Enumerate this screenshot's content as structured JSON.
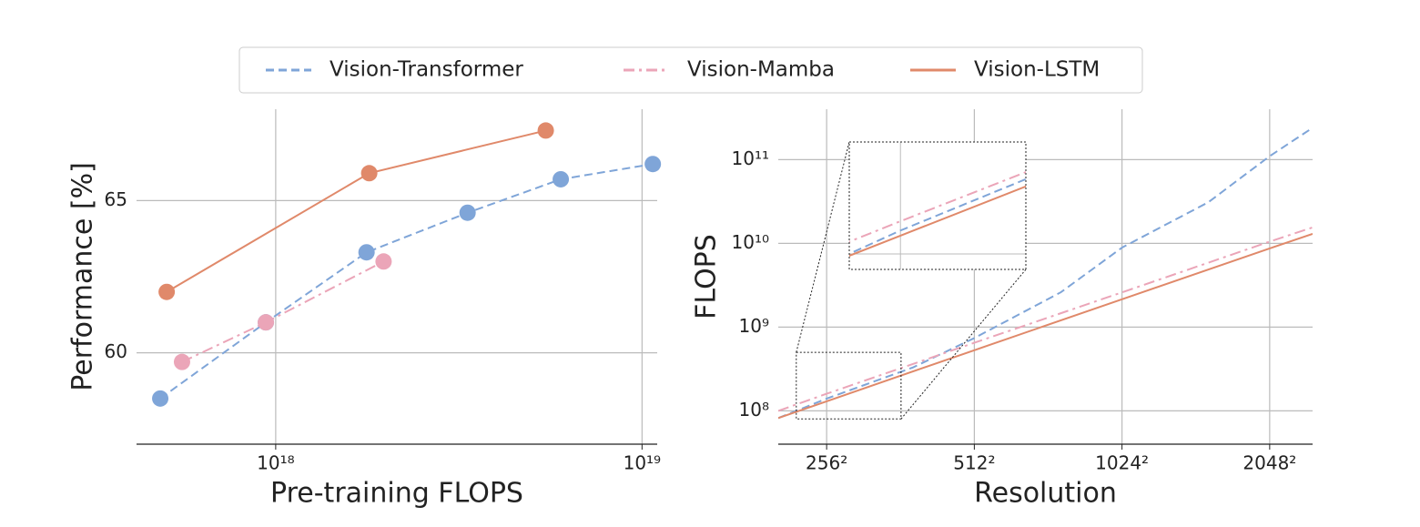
{
  "chart_data": [
    {
      "type": "line",
      "xlabel": "Pre-training FLOPS",
      "ylabel": "Performance [%]",
      "xscale": "log",
      "yscale": "linear",
      "grid": true,
      "markers": true,
      "xlim": [
        4.17e+17,
        1.1e+19
      ],
      "ylim": [
        57,
        68
      ],
      "xticks": [
        {
          "value": 1e+18,
          "label": "10¹⁸"
        },
        {
          "value": 1e+19,
          "label": "10¹⁹"
        }
      ],
      "yticks": [
        60,
        65
      ],
      "series": [
        {
          "name": "Vision-Transformer",
          "color": "#7fa5d8",
          "dash": "--",
          "x": [
            4.84e+17,
            9.4e+17,
            1.77e+18,
            3.34e+18,
            6e+18,
            1.07e+19
          ],
          "values": [
            58.5,
            61.0,
            63.3,
            64.6,
            65.7,
            66.2
          ]
        },
        {
          "name": "Vision-Mamba",
          "color": "#eba5b8",
          "dash": "-.",
          "x": [
            5.55e+17,
            9.4e+17,
            1.97e+18
          ],
          "values": [
            59.7,
            61.0,
            63.0
          ]
        },
        {
          "name": "Vision-LSTM",
          "color": "#e0896a",
          "dash": "-",
          "x": [
            5.04e+17,
            1.8e+18,
            5.46e+18
          ],
          "values": [
            62.0,
            65.9,
            67.3
          ]
        }
      ]
    },
    {
      "type": "line",
      "xlabel": "Resolution",
      "ylabel": "FLOPS",
      "xscale": "log",
      "yscale": "log",
      "grid": true,
      "markers": false,
      "xlim": [
        204,
        2505
      ],
      "ylim": [
        40000000.0,
        400000000000.0
      ],
      "xticks": [
        {
          "value": 256,
          "label": "256²"
        },
        {
          "value": 512,
          "label": "512²"
        },
        {
          "value": 1024,
          "label": "1024²"
        },
        {
          "value": 2048,
          "label": "2048²"
        }
      ],
      "yticks": [
        {
          "value": 100000000.0,
          "label": "10⁸"
        },
        {
          "value": 1000000000.0,
          "label": "10⁹"
        },
        {
          "value": 10000000000.0,
          "label": "10¹⁰"
        },
        {
          "value": 100000000000.0,
          "label": "10¹¹"
        }
      ],
      "inset": {
        "xlim": [
          222,
          363
        ],
        "ylim": [
          80000000.0,
          500000000.0
        ]
      },
      "series": [
        {
          "color": "#7fa5d8",
          "dash": "--",
          "x": [
            204,
            256,
            384,
            512,
            768,
            1024,
            1536,
            2048,
            2505
          ],
          "values": [
            82000000.0,
            140000000.0,
            330000000.0,
            740000000.0,
            2600000000.0,
            8900000000.0,
            31000000000.0,
            110000000000.0,
            240000000000.0
          ]
        },
        {
          "color": "#eba5b8",
          "dash": "-.",
          "x": [
            204,
            256,
            512,
            1024,
            2048,
            2505
          ],
          "values": [
            100000000.0,
            160000000.0,
            650000000.0,
            2600000000.0,
            10500000000.0,
            15500000000.0
          ]
        },
        {
          "color": "#e0896a",
          "dash": "-",
          "x": [
            204,
            256,
            512,
            1024,
            2048,
            2505
          ],
          "values": [
            82000000.0,
            130000000.0,
            530000000.0,
            2150000000.0,
            8700000000.0,
            13000000000.0
          ]
        }
      ]
    }
  ]
}
